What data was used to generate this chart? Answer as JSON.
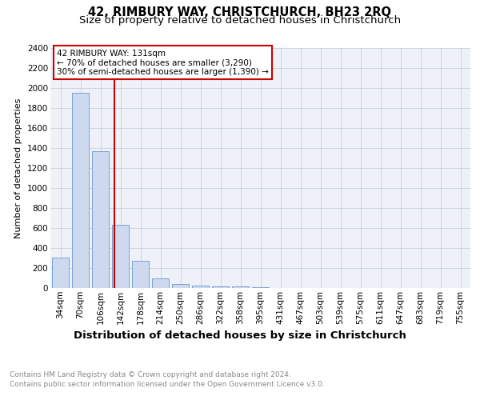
{
  "title": "42, RIMBURY WAY, CHRISTCHURCH, BH23 2RQ",
  "subtitle": "Size of property relative to detached houses in Christchurch",
  "xlabel": "Distribution of detached houses by size in Christchurch",
  "ylabel": "Number of detached properties",
  "bar_labels": [
    "34sqm",
    "70sqm",
    "106sqm",
    "142sqm",
    "178sqm",
    "214sqm",
    "250sqm",
    "286sqm",
    "322sqm",
    "358sqm",
    "395sqm",
    "431sqm",
    "467sqm",
    "503sqm",
    "539sqm",
    "575sqm",
    "611sqm",
    "647sqm",
    "683sqm",
    "719sqm",
    "755sqm"
  ],
  "bar_values": [
    305,
    1950,
    1370,
    630,
    270,
    100,
    42,
    25,
    20,
    14,
    10,
    0,
    0,
    0,
    0,
    0,
    0,
    0,
    0,
    0,
    0
  ],
  "bar_color": "#ccd9ee",
  "bar_edge_color": "#6699cc",
  "property_line_label": "42 RIMBURY WAY: 131sqm",
  "annotation_line1": "← 70% of detached houses are smaller (3,290)",
  "annotation_line2": "30% of semi-detached houses are larger (1,390) →",
  "ylim": [
    0,
    2400
  ],
  "yticks": [
    0,
    200,
    400,
    600,
    800,
    1000,
    1200,
    1400,
    1600,
    1800,
    2000,
    2200,
    2400
  ],
  "annotation_box_color": "#cc0000",
  "vline_color": "#cc0000",
  "grid_color": "#c8d0dc",
  "bg_color": "#eef2f8",
  "footer_line1": "Contains HM Land Registry data © Crown copyright and database right 2024.",
  "footer_line2": "Contains public sector information licensed under the Open Government Licence v3.0.",
  "title_fontsize": 10.5,
  "subtitle_fontsize": 9.5,
  "xlabel_fontsize": 9.5,
  "ylabel_fontsize": 8,
  "tick_fontsize": 7.5,
  "annotation_fontsize": 7.5,
  "footer_fontsize": 6.5
}
